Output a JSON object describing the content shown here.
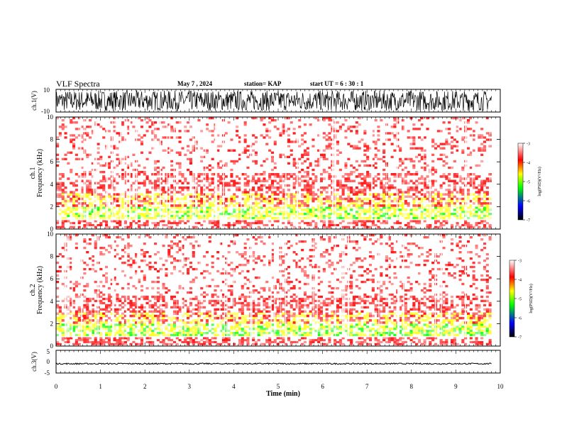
{
  "header": {
    "title": "VLF Spectra",
    "date": "May 7 , 2024",
    "station": "station= KAP",
    "start": "start UT =  6 : 30 : 1"
  },
  "chart_data": [
    {
      "type": "line",
      "panel": "ch1-waveform",
      "ylabel": "ch.1(V)",
      "ylim": [
        -10,
        10
      ],
      "yticks": [
        "10",
        "-10"
      ],
      "description_values": {
        "amplitude_range_v": [
          -9,
          9
        ],
        "x_range_min": [
          0,
          9.8
        ]
      }
    },
    {
      "type": "heatmap",
      "panel": "ch1-spectrogram",
      "ylabel": "ch.1\nFrequency (kHz)",
      "ylim": [
        0,
        10
      ],
      "yticks": [
        "0",
        "2",
        "4",
        "6",
        "8",
        "10"
      ],
      "bands": [
        {
          "from_khz": 0.1,
          "to_khz": 0.8,
          "level": -3.5
        },
        {
          "from_khz": 0.9,
          "to_khz": 2.0,
          "level": -4.8
        },
        {
          "from_khz": 2.0,
          "to_khz": 3.2,
          "level": -4.2
        },
        {
          "from_khz": 3.2,
          "to_khz": 5.0,
          "level": -3.6
        },
        {
          "from_khz": 5.0,
          "to_khz": 10.0,
          "level": -3.2
        }
      ],
      "colorbar": {
        "label": "log(PSD)(V²/Hz)",
        "ticks": [
          "-3",
          "-4",
          "-5",
          "-6",
          "-7"
        ],
        "range": [
          -7,
          -3
        ]
      }
    },
    {
      "type": "heatmap",
      "panel": "ch2-spectrogram",
      "ylabel": "ch.2\nFrequency (kHz)",
      "ylim": [
        0,
        10
      ],
      "yticks": [
        "0",
        "2",
        "4",
        "6",
        "8",
        "10"
      ],
      "bands": [
        {
          "from_khz": 0.1,
          "to_khz": 0.8,
          "level": -3.6
        },
        {
          "from_khz": 0.9,
          "to_khz": 2.0,
          "level": -4.9
        },
        {
          "from_khz": 2.0,
          "to_khz": 3.0,
          "level": -4.2
        },
        {
          "from_khz": 3.0,
          "to_khz": 4.5,
          "level": -3.6
        },
        {
          "from_khz": 4.5,
          "to_khz": 10.0,
          "level": -3.2
        }
      ],
      "colorbar": {
        "label": "log(PSD)(V²/Hz)",
        "ticks": [
          "-3",
          "-4",
          "-5",
          "-6",
          "-7"
        ],
        "range": [
          -7,
          -3
        ]
      }
    },
    {
      "type": "line",
      "panel": "ch3-waveform",
      "ylabel": "ch.3(V)",
      "ylim": [
        -5,
        5
      ],
      "yticks": [
        "5",
        "0",
        "-5"
      ],
      "description_values": {
        "level_v": [
          -1.2,
          -0.6
        ],
        "x_range_min": [
          0,
          9.8
        ]
      }
    }
  ],
  "xaxis": {
    "label": "Time (min)",
    "ticks": [
      "0",
      "1",
      "2",
      "3",
      "4",
      "5",
      "6",
      "7",
      "8",
      "9",
      "10"
    ],
    "xlim": [
      0,
      10
    ]
  },
  "colors": {
    "colormap": [
      "#ffffff",
      "#ff0000",
      "#ffff00",
      "#00ff00",
      "#0000ff",
      "#000000"
    ]
  }
}
